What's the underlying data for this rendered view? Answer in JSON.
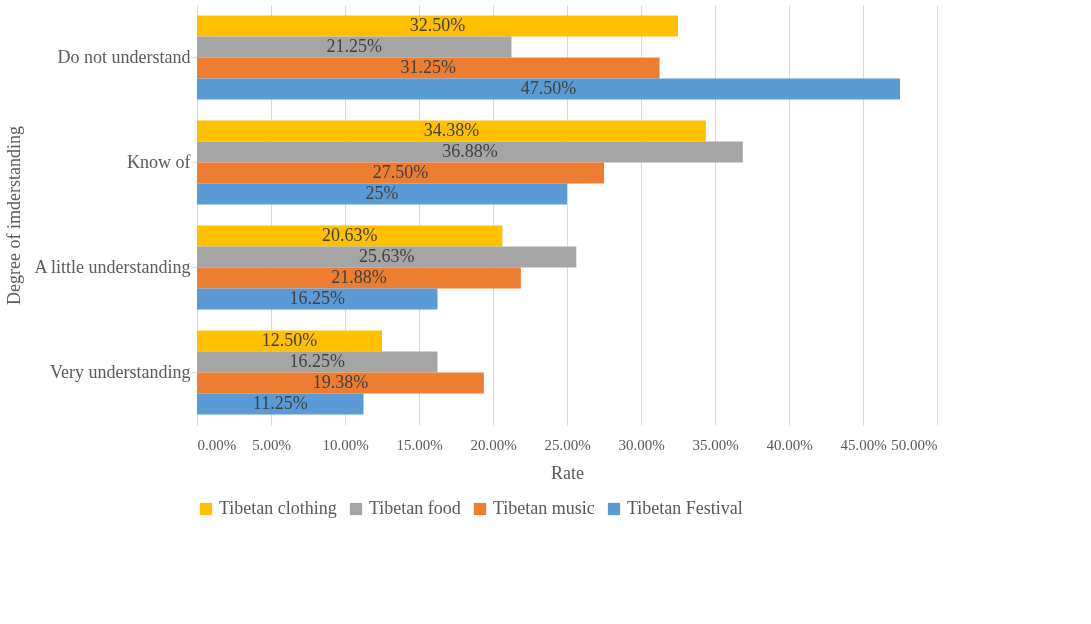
{
  "chart_data": {
    "type": "bar",
    "orientation": "horizontal",
    "ylabel": "Degree of imderstanding",
    "xlabel": "Rate",
    "categories": [
      "Do not understand",
      "Know of",
      "A little understanding",
      "Very understanding"
    ],
    "series": [
      {
        "name": "Tibetan clothing",
        "color": "#ffc000",
        "values": [
          32.5,
          34.38,
          20.63,
          12.5
        ],
        "value_labels": [
          "32.50%",
          "34.38%",
          "20.63%",
          "12.50%"
        ]
      },
      {
        "name": "Tibetan food",
        "color": "#a5a5a5",
        "values": [
          21.25,
          36.88,
          25.63,
          16.25
        ],
        "value_labels": [
          "21.25%",
          "36.88%",
          "25.63%",
          "16.25%"
        ]
      },
      {
        "name": "Tibetan music",
        "color": "#ed7d31",
        "values": [
          31.25,
          27.5,
          21.88,
          19.38
        ],
        "value_labels": [
          "31.25%",
          "27.50%",
          "21.88%",
          "19.38%"
        ]
      },
      {
        "name": "Tibetan Festival",
        "color": "#5b9bd5",
        "values": [
          47.5,
          25,
          16.25,
          11.25
        ],
        "value_labels": [
          "47.50%",
          "25%",
          "16.25%",
          "11.25%"
        ]
      }
    ],
    "xlim": [
      0,
      50
    ],
    "xticks": [
      {
        "value": 0,
        "label": "0.00%"
      },
      {
        "value": 5,
        "label": "5.00%"
      },
      {
        "value": 10,
        "label": "10.00%"
      },
      {
        "value": 15,
        "label": "15.00%"
      },
      {
        "value": 20,
        "label": "20.00%"
      },
      {
        "value": 25,
        "label": "25.00%"
      },
      {
        "value": 30,
        "label": "30.00%"
      },
      {
        "value": 35,
        "label": "35.00%"
      },
      {
        "value": 40,
        "label": "40.00%"
      },
      {
        "value": 45,
        "label": "45.00%"
      },
      {
        "value": 50,
        "label": "50.00%"
      }
    ],
    "grid": "x",
    "legend": "bottom"
  }
}
